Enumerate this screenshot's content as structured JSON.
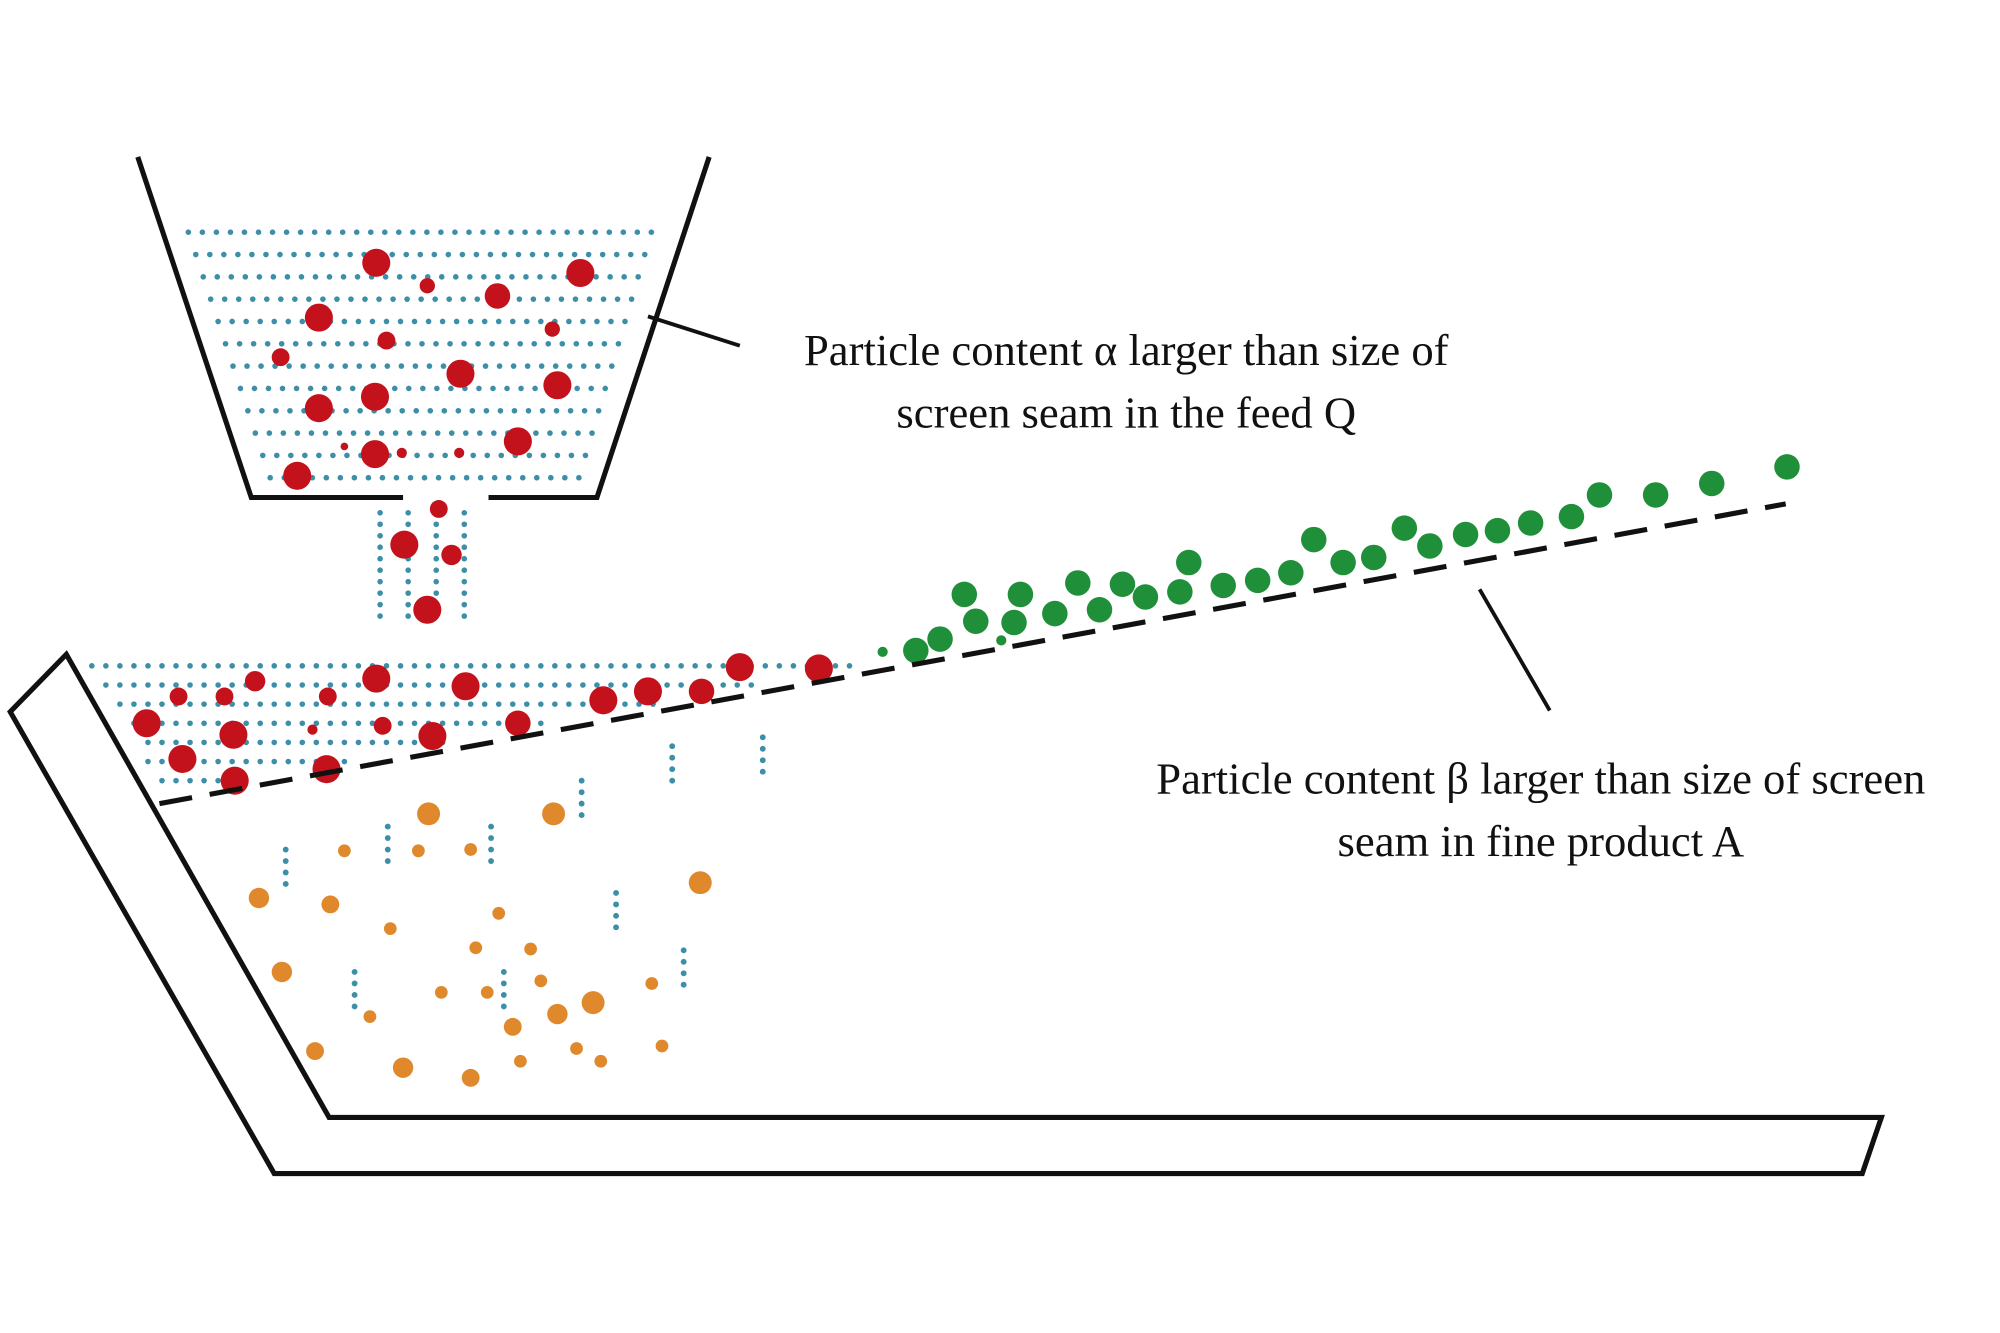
{
  "labels": [
    {
      "lines": [
        "Particle content α larger than size of",
        "screen seam in the feed Q"
      ]
    },
    {
      "lines": [
        "Particle content β larger than size of screen",
        "seam in fine product A"
      ]
    }
  ]
}
